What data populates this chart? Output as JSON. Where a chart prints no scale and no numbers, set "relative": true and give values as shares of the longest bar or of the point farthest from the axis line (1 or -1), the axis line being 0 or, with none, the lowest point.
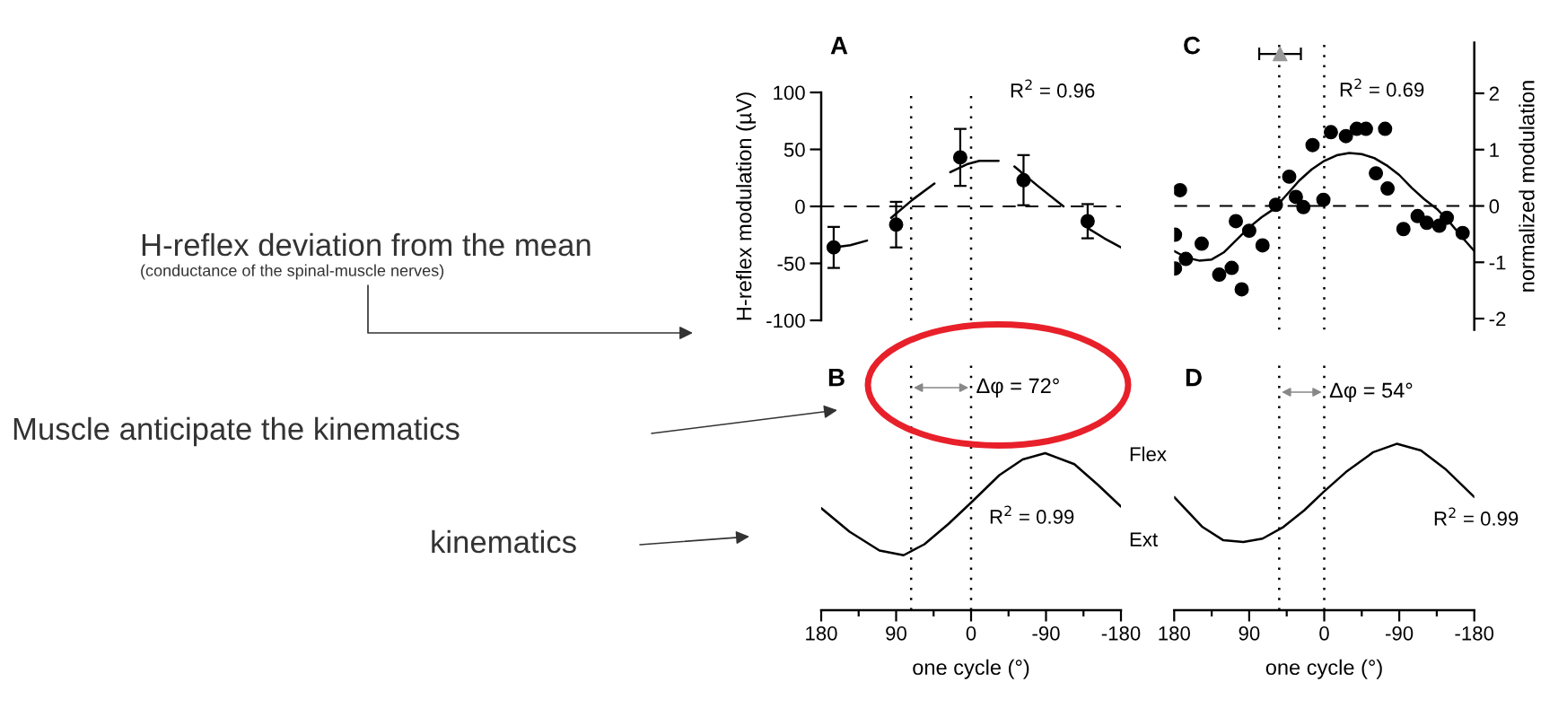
{
  "chart_data": [
    {
      "type": "scatter",
      "title": "A",
      "ylabel": "H-reflex modulation (µV)",
      "xlim": [
        180,
        -180
      ],
      "ylim": [
        -100,
        100
      ],
      "yticks": [
        100,
        50,
        0,
        -50,
        -100
      ],
      "tick_labels": "y",
      "series": [
        {
          "type": "scatter",
          "color": "#000000",
          "marker": "circle",
          "x": [
            165,
            90,
            13,
            -63,
            -140
          ],
          "values": [
            -36,
            -16,
            43,
            23,
            -13
          ],
          "errors": [
            18,
            20,
            25,
            22,
            15
          ]
        },
        {
          "type": "line",
          "color": "#000000",
          "x": [
            165,
            145,
            125,
            124,
            96,
            70,
            44,
            43,
            25,
            5,
            -10,
            -33,
            -34,
            -52,
            -80,
            -111,
            -112,
            -140,
            -160,
            -180
          ],
          "values": [
            -36,
            -34,
            -30,
            null,
            -10,
            6,
            20,
            null,
            30,
            37,
            40,
            40,
            null,
            35,
            18,
            0,
            null,
            -19,
            -28,
            -36
          ]
        }
      ],
      "ref_lines": [
        {
          "axis": "y",
          "value": 0,
          "line_style": "dashed",
          "color": "#000000"
        },
        {
          "axis": "x",
          "value": 72,
          "line_style": "dotted",
          "color": "#000000"
        },
        {
          "axis": "x",
          "value": 0,
          "line_style": "dotted",
          "color": "#000000"
        }
      ],
      "annotations": [
        "R$^{2}$ = 0.96",
        "H-reflex deviation from the mean",
        "(conductance of the spinal-muscle nerves)",
        "Muscle anticipate the kinematics",
        "kinematics"
      ]
    },
    {
      "type": "scatter",
      "title": "C",
      "y2label": "normalized modulation",
      "xlim": [
        180,
        -180
      ],
      "y2lim": [
        -2.2,
        2.9
      ],
      "y2ticks": [
        2,
        1,
        0,
        -1,
        -2
      ],
      "tick_labels": "y",
      "series": [
        {
          "type": "scatter",
          "axis": "y2",
          "color": "#000000",
          "marker": "circle",
          "x": [
            173,
            179,
            179,
            166,
            147,
            126,
            111,
            99,
            106,
            90,
            74,
            58,
            42,
            34,
            25,
            14,
            1,
            -8,
            -26,
            -39,
            -50,
            -73,
            -62,
            -76,
            -95,
            -112,
            -123,
            -138,
            -147,
            -166
          ],
          "values": [
            0.28,
            -0.51,
            -1.11,
            -0.94,
            -0.67,
            -1.22,
            -1.1,
            -1.48,
            -0.27,
            -0.44,
            -0.7,
            0.02,
            0.52,
            0.16,
            -0.02,
            1.08,
            0.11,
            1.31,
            1.24,
            1.37,
            1.37,
            1.37,
            0.58,
            0.31,
            -0.41,
            -0.18,
            -0.3,
            -0.35,
            -0.21,
            -0.48
          ]
        },
        {
          "type": "line",
          "axis": "y2",
          "color": "#000000",
          "x": [
            180,
            165,
            150,
            135,
            120,
            105,
            90,
            75,
            60,
            45,
            30,
            15,
            0,
            -15,
            -30,
            -45,
            -60,
            -75,
            -90,
            -105,
            -120,
            -135,
            -150,
            -165,
            -180
          ],
          "values": [
            -0.8,
            -0.92,
            -0.97,
            -0.95,
            -0.82,
            -0.6,
            -0.38,
            -0.2,
            -0.05,
            0.2,
            0.45,
            0.65,
            0.8,
            0.9,
            0.94,
            0.92,
            0.85,
            0.72,
            0.55,
            0.32,
            0.12,
            -0.05,
            -0.28,
            -0.55,
            -0.8
          ]
        },
        {
          "type": "scatter",
          "axis": "y2",
          "color": "#999999",
          "marker": "triangle",
          "x": [
            53
          ],
          "values": [
            2.7
          ],
          "xerrors": [
            25
          ]
        }
      ],
      "ref_lines": [
        {
          "axis": "y2",
          "value": 0,
          "line_style": "dashed",
          "color": "#000000"
        },
        {
          "axis": "x",
          "value": 54,
          "line_style": "dotted",
          "color": "#000000"
        },
        {
          "axis": "x",
          "value": 0,
          "line_style": "dotted",
          "color": "#000000"
        }
      ],
      "annotations": [
        "R$^{2}$ = 0.69"
      ]
    },
    {
      "type": "line",
      "title": "B",
      "relative": true,
      "xlabel": "one cycle (°)",
      "xlim": [
        180,
        -180
      ],
      "xticks": [
        180,
        {
          "value": 135,
          "label": null
        },
        90,
        {
          "value": 45,
          "label": null
        },
        0,
        {
          "value": -45,
          "label": null
        },
        -90,
        {
          "value": -135,
          "label": null
        },
        -180
      ],
      "tick_labels": "x",
      "series": [
        {
          "color": "#000000",
          "x": [
            180,
            146,
            110,
            81,
            56,
            27,
            -1,
            -34,
            -62,
            -89,
            -124,
            -152,
            -180
          ],
          "values": [
            0.65,
            0.5,
            0.38,
            0.35,
            0.42,
            0.55,
            0.69,
            0.86,
            0.96,
            1,
            0.93,
            0.8,
            0.66
          ]
        }
      ],
      "ref_lines": [
        {
          "axis": "x",
          "value": 72,
          "line_style": "dotted",
          "color": "#000000"
        },
        {
          "axis": "x",
          "value": 0,
          "line_style": "dotted",
          "color": "#000000"
        }
      ],
      "annotations": [
        "Δφ = 72°",
        "R$^{2}$ = 0.99"
      ]
    },
    {
      "type": "line",
      "title": "D",
      "relative": true,
      "xlabel": "one cycle (°)",
      "xlim": [
        180,
        -180
      ],
      "xticks": [
        180,
        {
          "value": 135,
          "label": null
        },
        90,
        {
          "value": 45,
          "label": null
        },
        0,
        {
          "value": -45,
          "label": null
        },
        -90,
        {
          "value": -135,
          "label": null
        },
        -180
      ],
      "tick_labels": "x",
      "series": [
        {
          "color": "#000000",
          "x": [
            180,
            146,
            121,
            97,
            74,
            49,
            24,
            1,
            -26,
            -59,
            -87,
            -116,
            -145,
            -180
          ],
          "values": [
            0.68,
            0.5,
            0.42,
            0.41,
            0.43,
            0.5,
            0.6,
            0.71,
            0.83,
            0.95,
            1,
            0.96,
            0.85,
            0.68
          ]
        }
      ],
      "ref_lines": [
        {
          "axis": "x",
          "value": 54,
          "line_style": "dotted",
          "color": "#000000"
        },
        {
          "axis": "x",
          "value": 0,
          "line_style": "dotted",
          "color": "#000000"
        }
      ],
      "annotations": [
        "Δφ = 54°",
        "R$^{2}$ = 0.99",
        "Flex",
        "Ext"
      ]
    }
  ]
}
